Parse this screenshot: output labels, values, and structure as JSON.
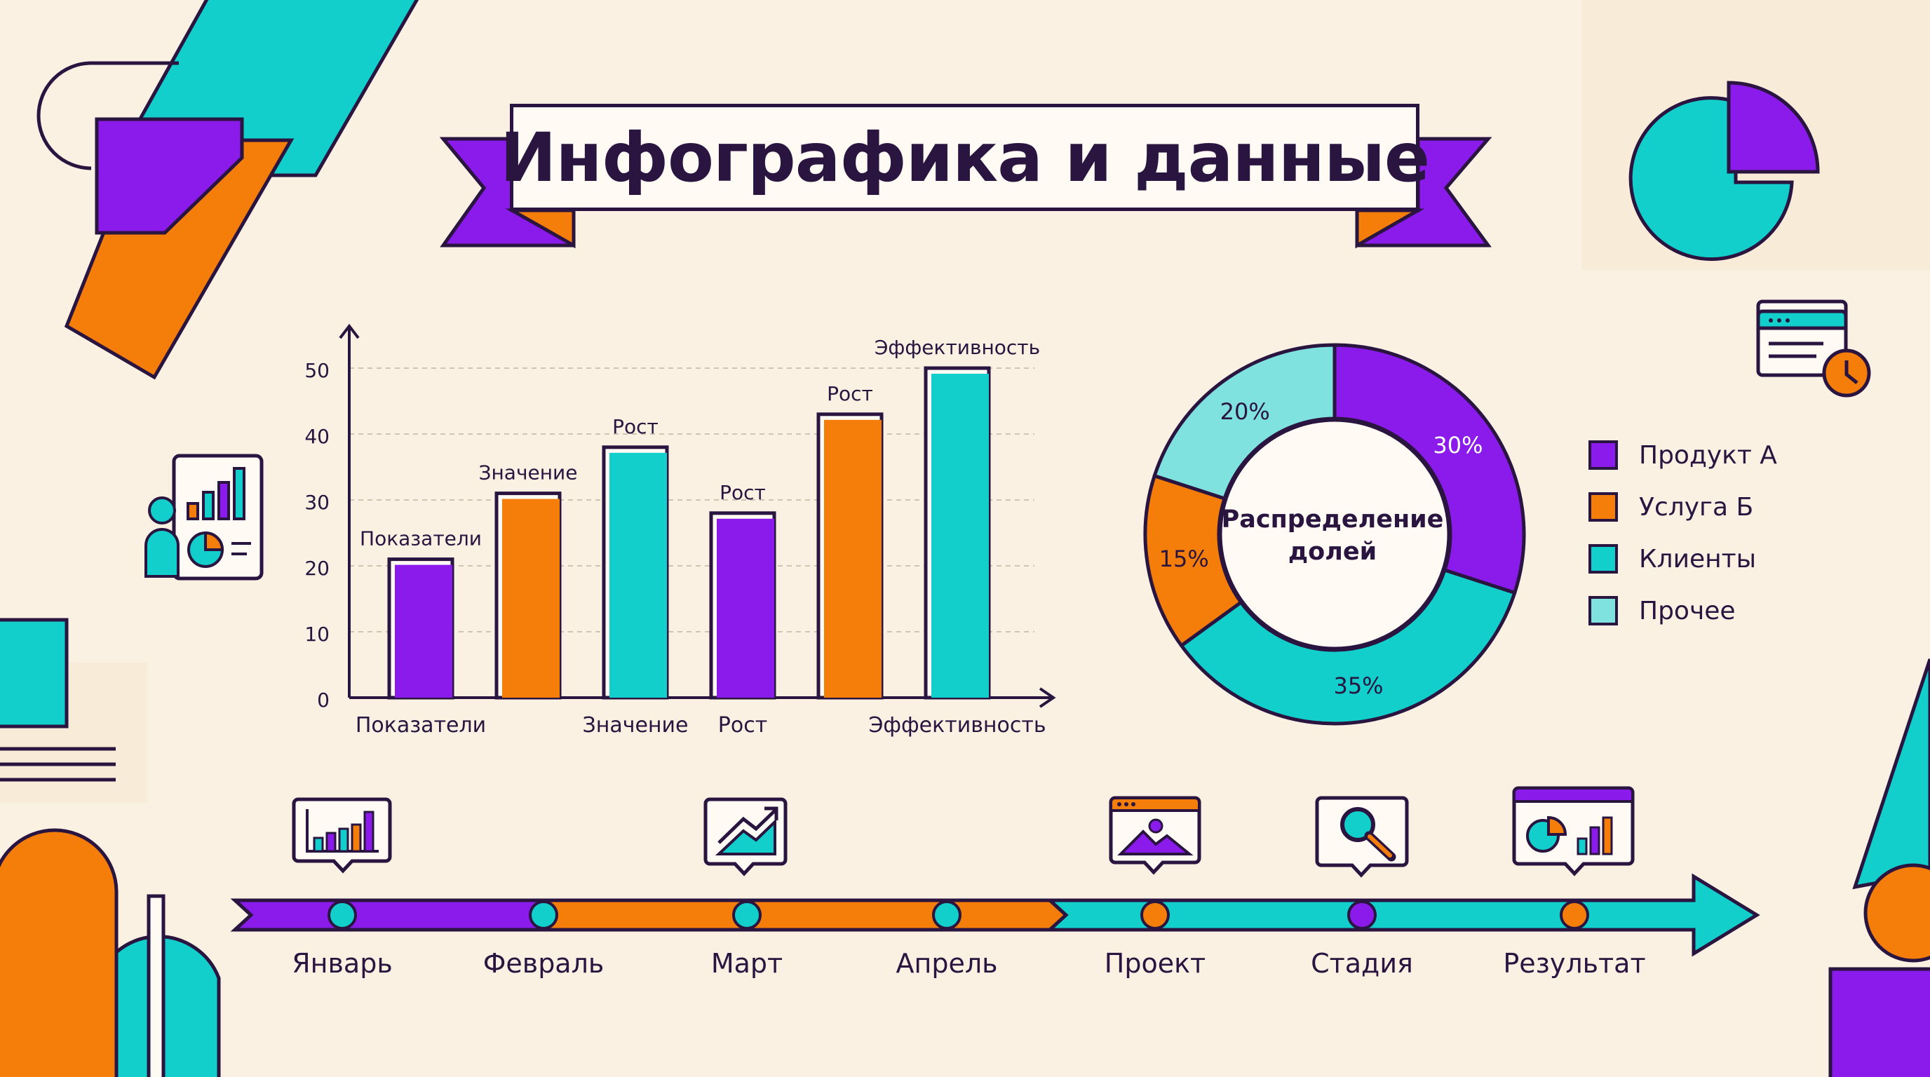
{
  "title": "Инфографика и данные",
  "colors": {
    "background": "#FBF1E2",
    "purple": "#8A1BEA",
    "orange": "#F57E0A",
    "teal": "#12CFCB",
    "light_teal": "#7FE2DF",
    "outline": "#2A1440"
  },
  "chart_data": [
    {
      "type": "bar",
      "categories": [
        "Показатели",
        "Значение",
        "Рост",
        "Рост",
        "Рост",
        "Эффективность"
      ],
      "bar_labels": [
        "Показатели",
        "Значение",
        "Рост",
        "Рост",
        "Рост",
        "Эффективность"
      ],
      "x_tick_labels": [
        "Показатели",
        "",
        "Значение",
        "Рост",
        "",
        "Эффективность"
      ],
      "values": [
        21,
        31,
        38,
        28,
        43,
        50
      ],
      "bar_colors": [
        "#8A1BEA",
        "#F57E0A",
        "#12CFCB",
        "#8A1BEA",
        "#F57E0A",
        "#12CFCB"
      ],
      "yticks": [
        0,
        10,
        20,
        30,
        40,
        50
      ],
      "ylim": [
        0,
        50
      ],
      "grid": "horizontal dashed",
      "xlabel": "",
      "ylabel": ""
    },
    {
      "type": "pie",
      "style": "donut",
      "center_label": [
        "Распределение",
        "долей"
      ],
      "labels": [
        "Продукт А",
        "Клиенты",
        "Услуга Б",
        "Прочее"
      ],
      "values": [
        30,
        35,
        15,
        20
      ],
      "value_labels": [
        "30%",
        "35%",
        "15%",
        "20%"
      ],
      "colors": [
        "#8A1BEA",
        "#12CFCB",
        "#F57E0A",
        "#7FE2DF"
      ],
      "legend": {
        "placement": "right",
        "items": [
          {
            "label": "Продукт А",
            "color": "#8A1BEA"
          },
          {
            "label": "Услуга Б",
            "color": "#F57E0A"
          },
          {
            "label": "Клиенты",
            "color": "#12CFCB"
          },
          {
            "label": "Прочее",
            "color": "#7FE2DF"
          }
        ]
      }
    }
  ],
  "timeline": {
    "labels": [
      "Январь",
      "Февраль",
      "Март",
      "Апрель",
      "Проект",
      "Стадия",
      "Результат"
    ],
    "icons": [
      "bar-chart-icon",
      "trend-chart-icon",
      "image-window-icon",
      "magnifier-icon",
      "dashboard-icon"
    ]
  },
  "decor_icons": [
    "pie-chart-icon",
    "calendar-clock-icon",
    "presenter-icon"
  ]
}
